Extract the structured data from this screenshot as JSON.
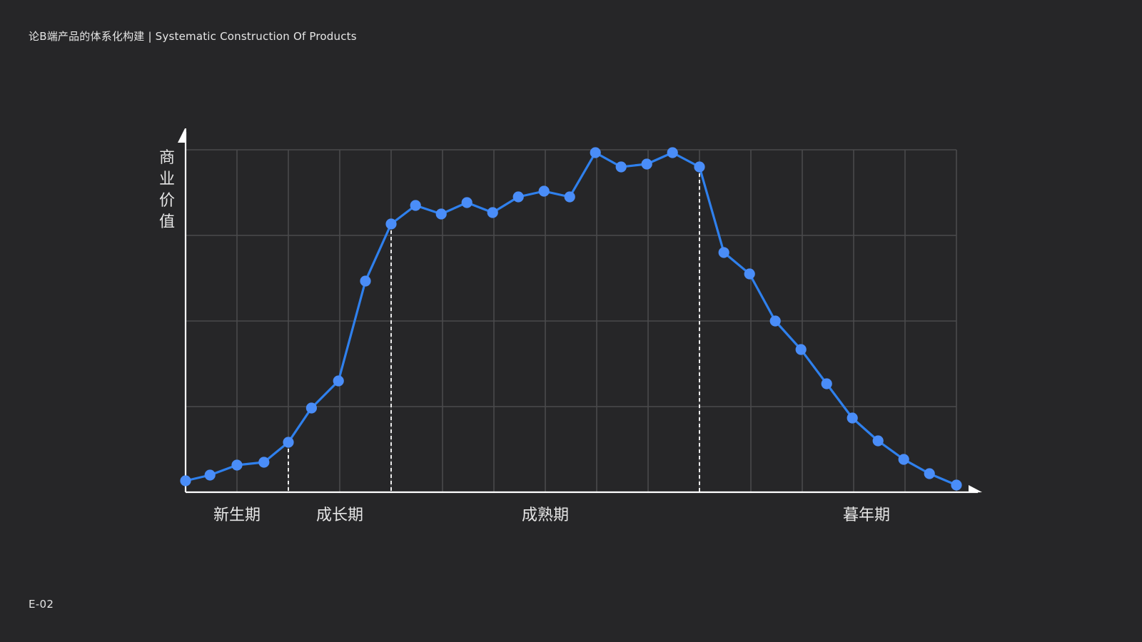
{
  "header": {
    "title": "论B端产品的体系化构建 | Systematic Construction Of Products"
  },
  "footer": {
    "page_code": "E-02"
  },
  "colors": {
    "background": "#262628",
    "line": "#2f80ed",
    "point": "#4a8df8",
    "grid": "#4a4a4c",
    "axis": "#ffffff",
    "text": "#e6e6e6"
  },
  "chart_data": {
    "type": "line",
    "title": "",
    "ylabel": "商业价值",
    "xlabel": "",
    "stage_labels": [
      {
        "label": "新生期",
        "x": 2
      },
      {
        "label": "成长期",
        "x": 6
      },
      {
        "label": "成熟期",
        "x": 14
      },
      {
        "label": "暮年期",
        "x": 26.5
      }
    ],
    "stage_boundaries": [
      4,
      8,
      20
    ],
    "x": [
      0,
      0.95,
      2,
      3.05,
      4,
      4.9,
      5.95,
      7.0,
      8,
      8.95,
      9.95,
      10.95,
      11.95,
      12.95,
      13.95,
      14.95,
      15.95,
      16.95,
      17.95,
      18.95,
      20,
      20.95,
      21.95,
      22.95,
      23.95,
      24.95,
      25.95,
      26.95,
      27.95,
      28.95,
      30
    ],
    "y": [
      0.4,
      0.6,
      0.95,
      1.05,
      1.75,
      2.95,
      3.9,
      7.4,
      9.4,
      10.05,
      9.75,
      10.15,
      9.8,
      10.35,
      10.55,
      10.35,
      11.9,
      11.4,
      11.5,
      11.9,
      11.4,
      8.4,
      7.65,
      6.0,
      5.0,
      3.8,
      2.6,
      1.8,
      1.15,
      0.65,
      0.25
    ],
    "xlim": [
      0,
      30
    ],
    "ylim": [
      0,
      12
    ],
    "grid": true
  }
}
